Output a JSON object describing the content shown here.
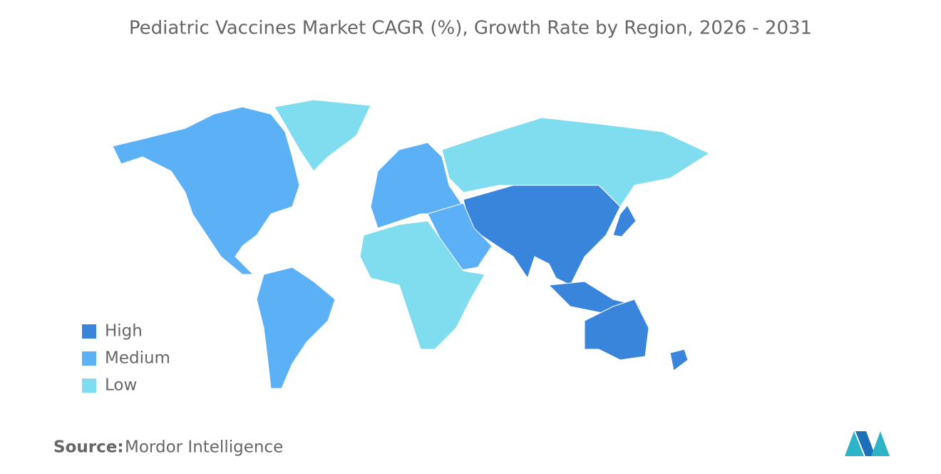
{
  "title": "Pediatric Vaccines Market CAGR (%), Growth Rate by Region, 2026 - 2031",
  "legend": [
    {
      "label": "High",
      "color": "#3a85dc"
    },
    {
      "label": "Medium",
      "color": "#5cb0f6"
    },
    {
      "label": "Low",
      "color": "#7fddef"
    }
  ],
  "source": {
    "label": "Source:",
    "text": "Mordor Intelligence"
  }
}
